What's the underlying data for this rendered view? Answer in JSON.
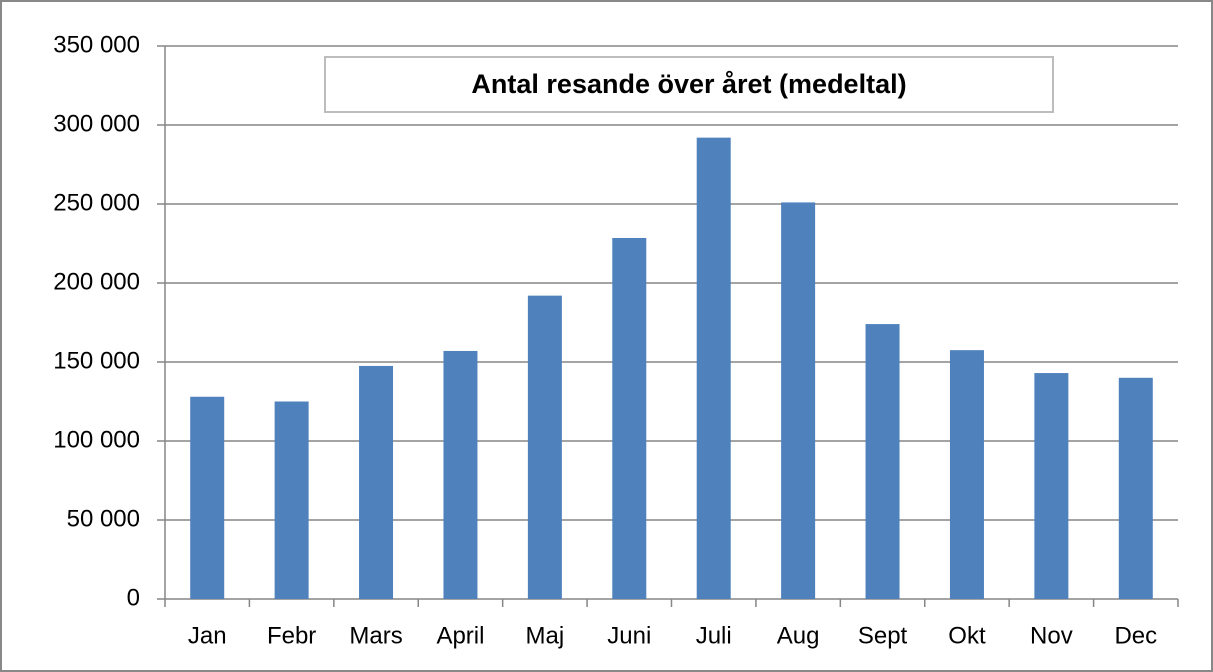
{
  "chart_data": {
    "type": "bar",
    "title": "Antal resande över året (medeltal)",
    "categories": [
      "Jan",
      "Febr",
      "Mars",
      "April",
      "Maj",
      "Juni",
      "Juli",
      "Aug",
      "Sept",
      "Okt",
      "Nov",
      "Dec"
    ],
    "values": [
      128000,
      125000,
      147500,
      157000,
      192000,
      228500,
      292000,
      251000,
      174000,
      157500,
      143000,
      140000
    ],
    "color": "#4f81bd",
    "ylim": [
      0,
      350000
    ],
    "yticks": [
      0,
      {
        "value": 50000,
        "label": "50 000"
      },
      {
        "value": 100000,
        "label": "100 000"
      },
      {
        "value": 150000,
        "label": "150 000"
      },
      {
        "value": 200000,
        "label": "200 000"
      },
      {
        "value": 250000,
        "label": "250 000"
      },
      {
        "value": 300000,
        "label": "300 000"
      },
      {
        "value": 350000,
        "label": "350 000"
      }
    ],
    "grid": true
  }
}
